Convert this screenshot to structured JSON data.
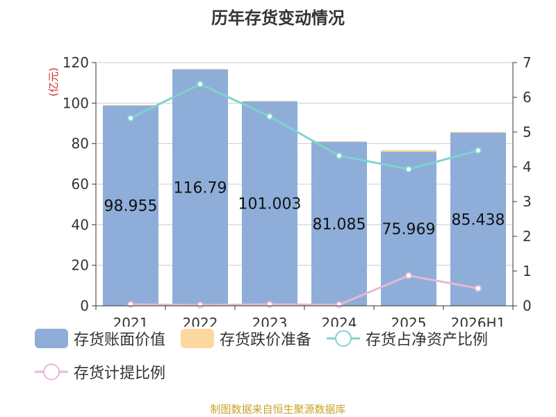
{
  "chart_data": {
    "type": "bar",
    "title": "历年存货变动情况",
    "ylabel": "(亿元)",
    "categories": [
      "2021",
      "2022",
      "2023",
      "2024",
      "2025",
      "2026H1"
    ],
    "ylim": [
      0,
      120
    ],
    "y_ticks": [
      0,
      20,
      40,
      60,
      80,
      100,
      120
    ],
    "y2lim": [
      0,
      7
    ],
    "y2_ticks": [
      0,
      1,
      2,
      3,
      4,
      5,
      6,
      7
    ],
    "grid": true,
    "legend_position": "bottom",
    "series": [
      {
        "name": "存货账面价值",
        "type": "bar",
        "axis": "left",
        "stack": "inv",
        "color": "#8eaed9",
        "values": [
          98.955,
          116.79,
          101.003,
          81.085,
          75.969,
          85.438
        ],
        "labels": [
          "98.955",
          "116.79",
          "101.003",
          "81.085",
          "75.969",
          "85.438"
        ]
      },
      {
        "name": "存货跌价准备",
        "type": "bar",
        "axis": "left",
        "stack": "inv",
        "color": "#fcd8a0",
        "values": [
          0.05,
          0.05,
          0.06,
          0.06,
          0.9,
          0.4
        ]
      },
      {
        "name": "存货占净资产比例",
        "type": "line",
        "axis": "right",
        "color": "#7fd3cf",
        "values": [
          5.4,
          6.38,
          5.45,
          4.32,
          3.93,
          4.47
        ]
      },
      {
        "name": "存货计提比例",
        "type": "line",
        "axis": "right",
        "color": "#e8b7d6",
        "values": [
          0.04,
          0.02,
          0.04,
          0.03,
          0.87,
          0.5
        ]
      }
    ]
  },
  "source_note": "制图数据来自恒生聚源数据库"
}
